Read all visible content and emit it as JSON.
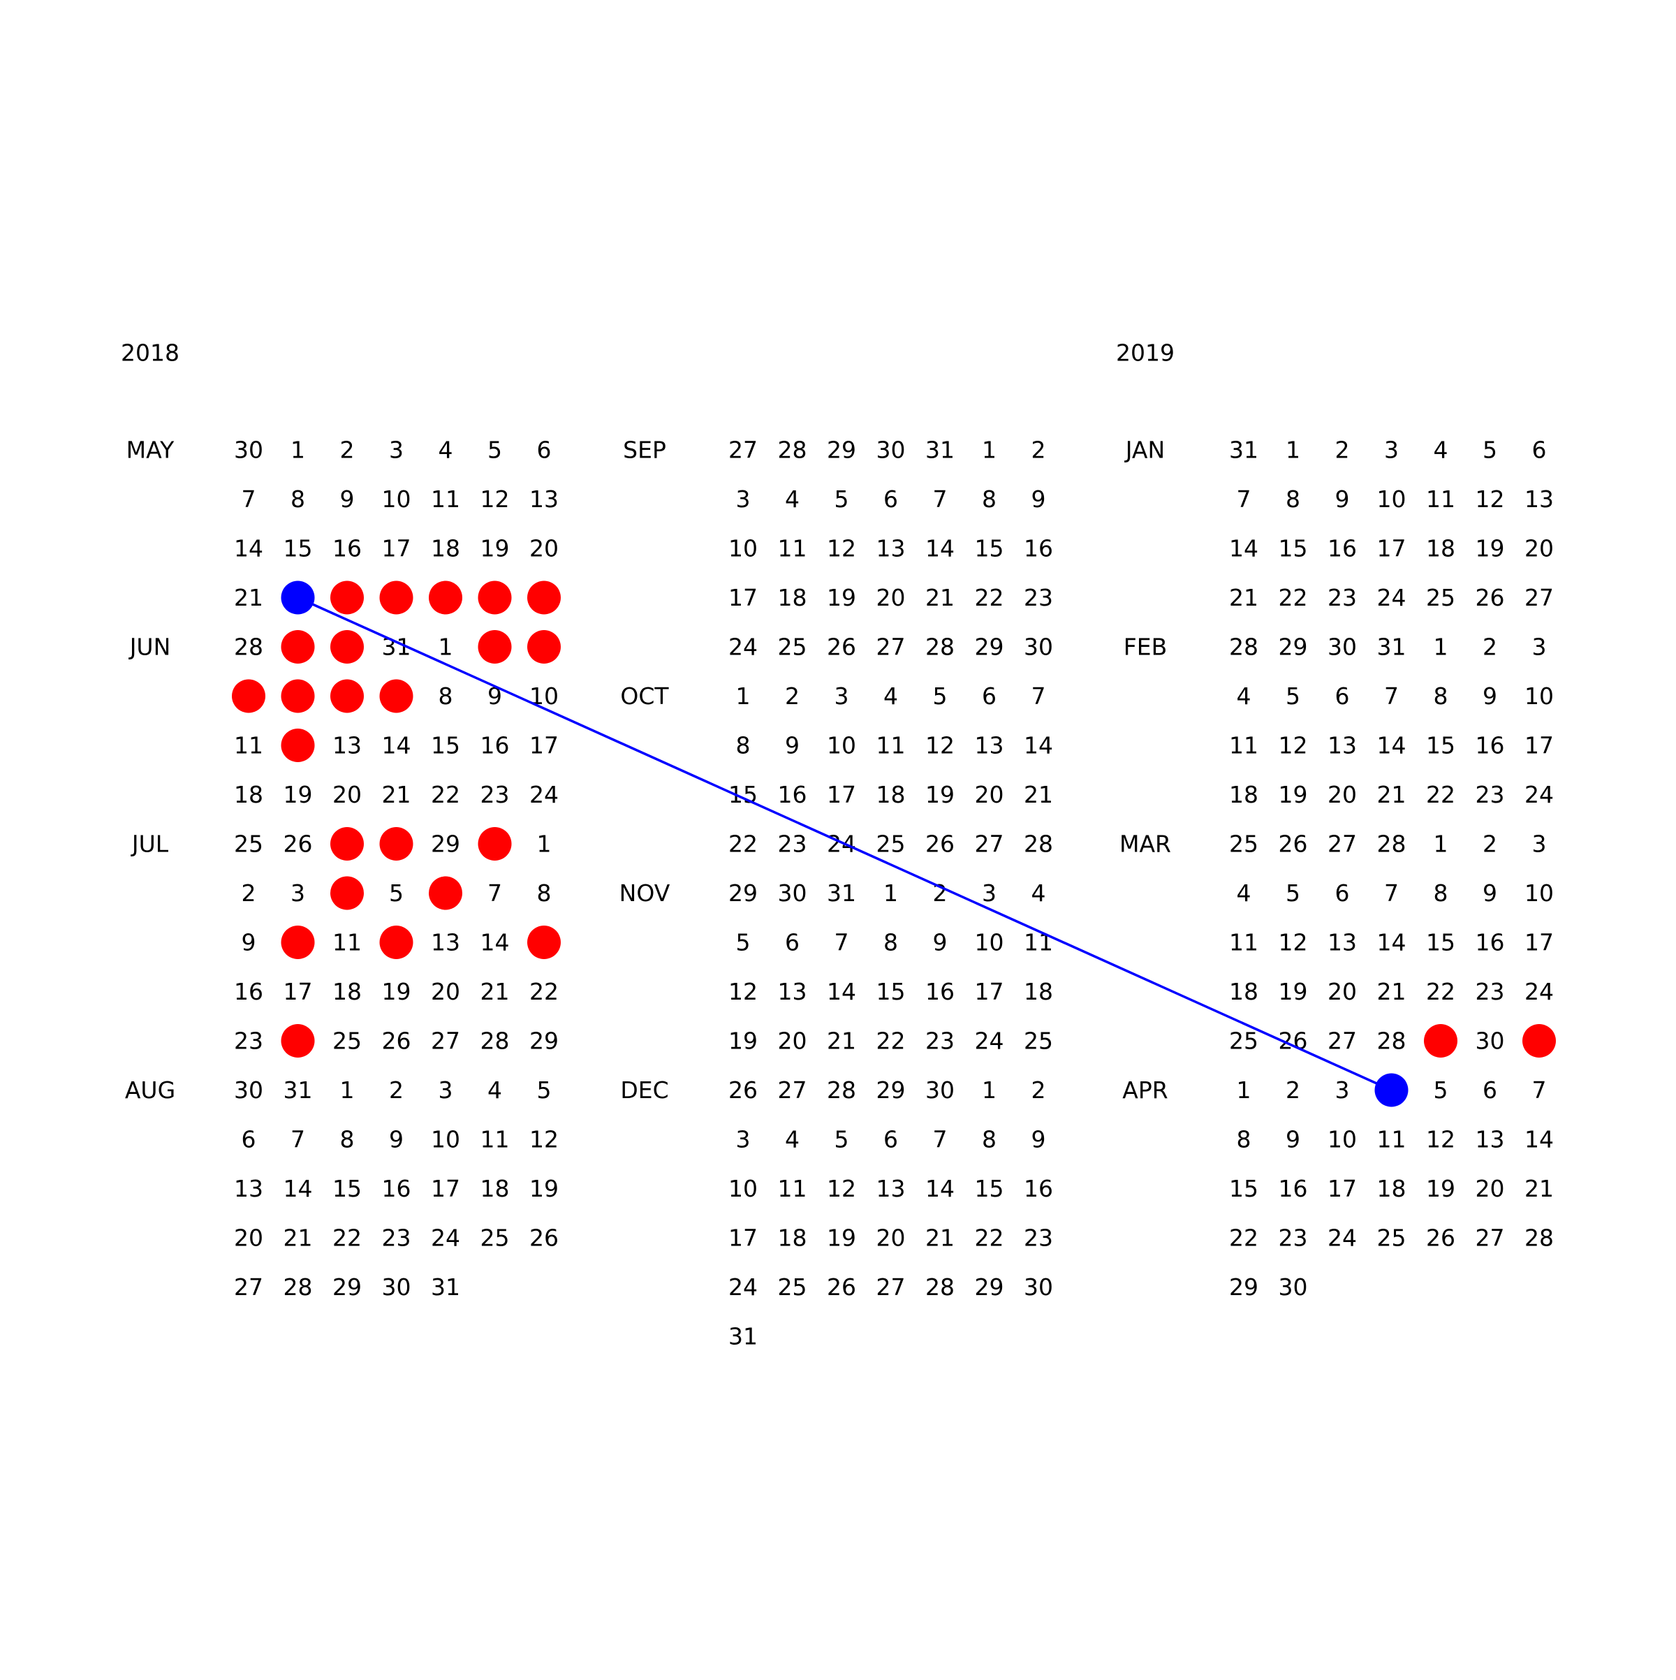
{
  "colors": {
    "marked": "#ff0000",
    "endpoint": "#0000ff",
    "connector": "#0000ff",
    "text": "#000000"
  },
  "panels": [
    {
      "year": "2018",
      "start": "2018-04-30",
      "end": "2018-08-31",
      "months": [
        {
          "label": "MAY",
          "date": "2018-05-01"
        },
        {
          "label": "JUN",
          "date": "2018-06-01"
        },
        {
          "label": "JUL",
          "date": "2018-07-01"
        },
        {
          "label": "AUG",
          "date": "2018-08-01"
        }
      ]
    },
    {
      "year": "",
      "start": "2018-08-27",
      "end": "2018-12-31",
      "months": [
        {
          "label": "SEP",
          "date": "2018-09-01"
        },
        {
          "label": "OCT",
          "date": "2018-10-01"
        },
        {
          "label": "NOV",
          "date": "2018-11-01"
        },
        {
          "label": "DEC",
          "date": "2018-12-01"
        }
      ]
    },
    {
      "year": "2019",
      "start": "2018-12-31",
      "end": "2019-04-30",
      "months": [
        {
          "label": "JAN",
          "date": "2019-01-01"
        },
        {
          "label": "FEB",
          "date": "2019-02-01"
        },
        {
          "label": "MAR",
          "date": "2019-03-01"
        },
        {
          "label": "APR",
          "date": "2019-04-01"
        }
      ]
    }
  ],
  "marked_dates": [
    "2018-05-23",
    "2018-05-24",
    "2018-05-25",
    "2018-05-26",
    "2018-05-27",
    "2018-05-29",
    "2018-05-30",
    "2018-06-02",
    "2018-06-03",
    "2018-06-04",
    "2018-06-05",
    "2018-06-06",
    "2018-06-07",
    "2018-06-12",
    "2018-06-27",
    "2018-06-28",
    "2018-06-30",
    "2018-07-04",
    "2018-07-06",
    "2018-07-10",
    "2018-07-12",
    "2018-07-15",
    "2018-07-24",
    "2019-03-29",
    "2019-03-31"
  ],
  "endpoint_dates": [
    "2018-05-22",
    "2019-04-04"
  ],
  "connector": {
    "from": "2018-05-22",
    "to": "2019-04-04"
  }
}
